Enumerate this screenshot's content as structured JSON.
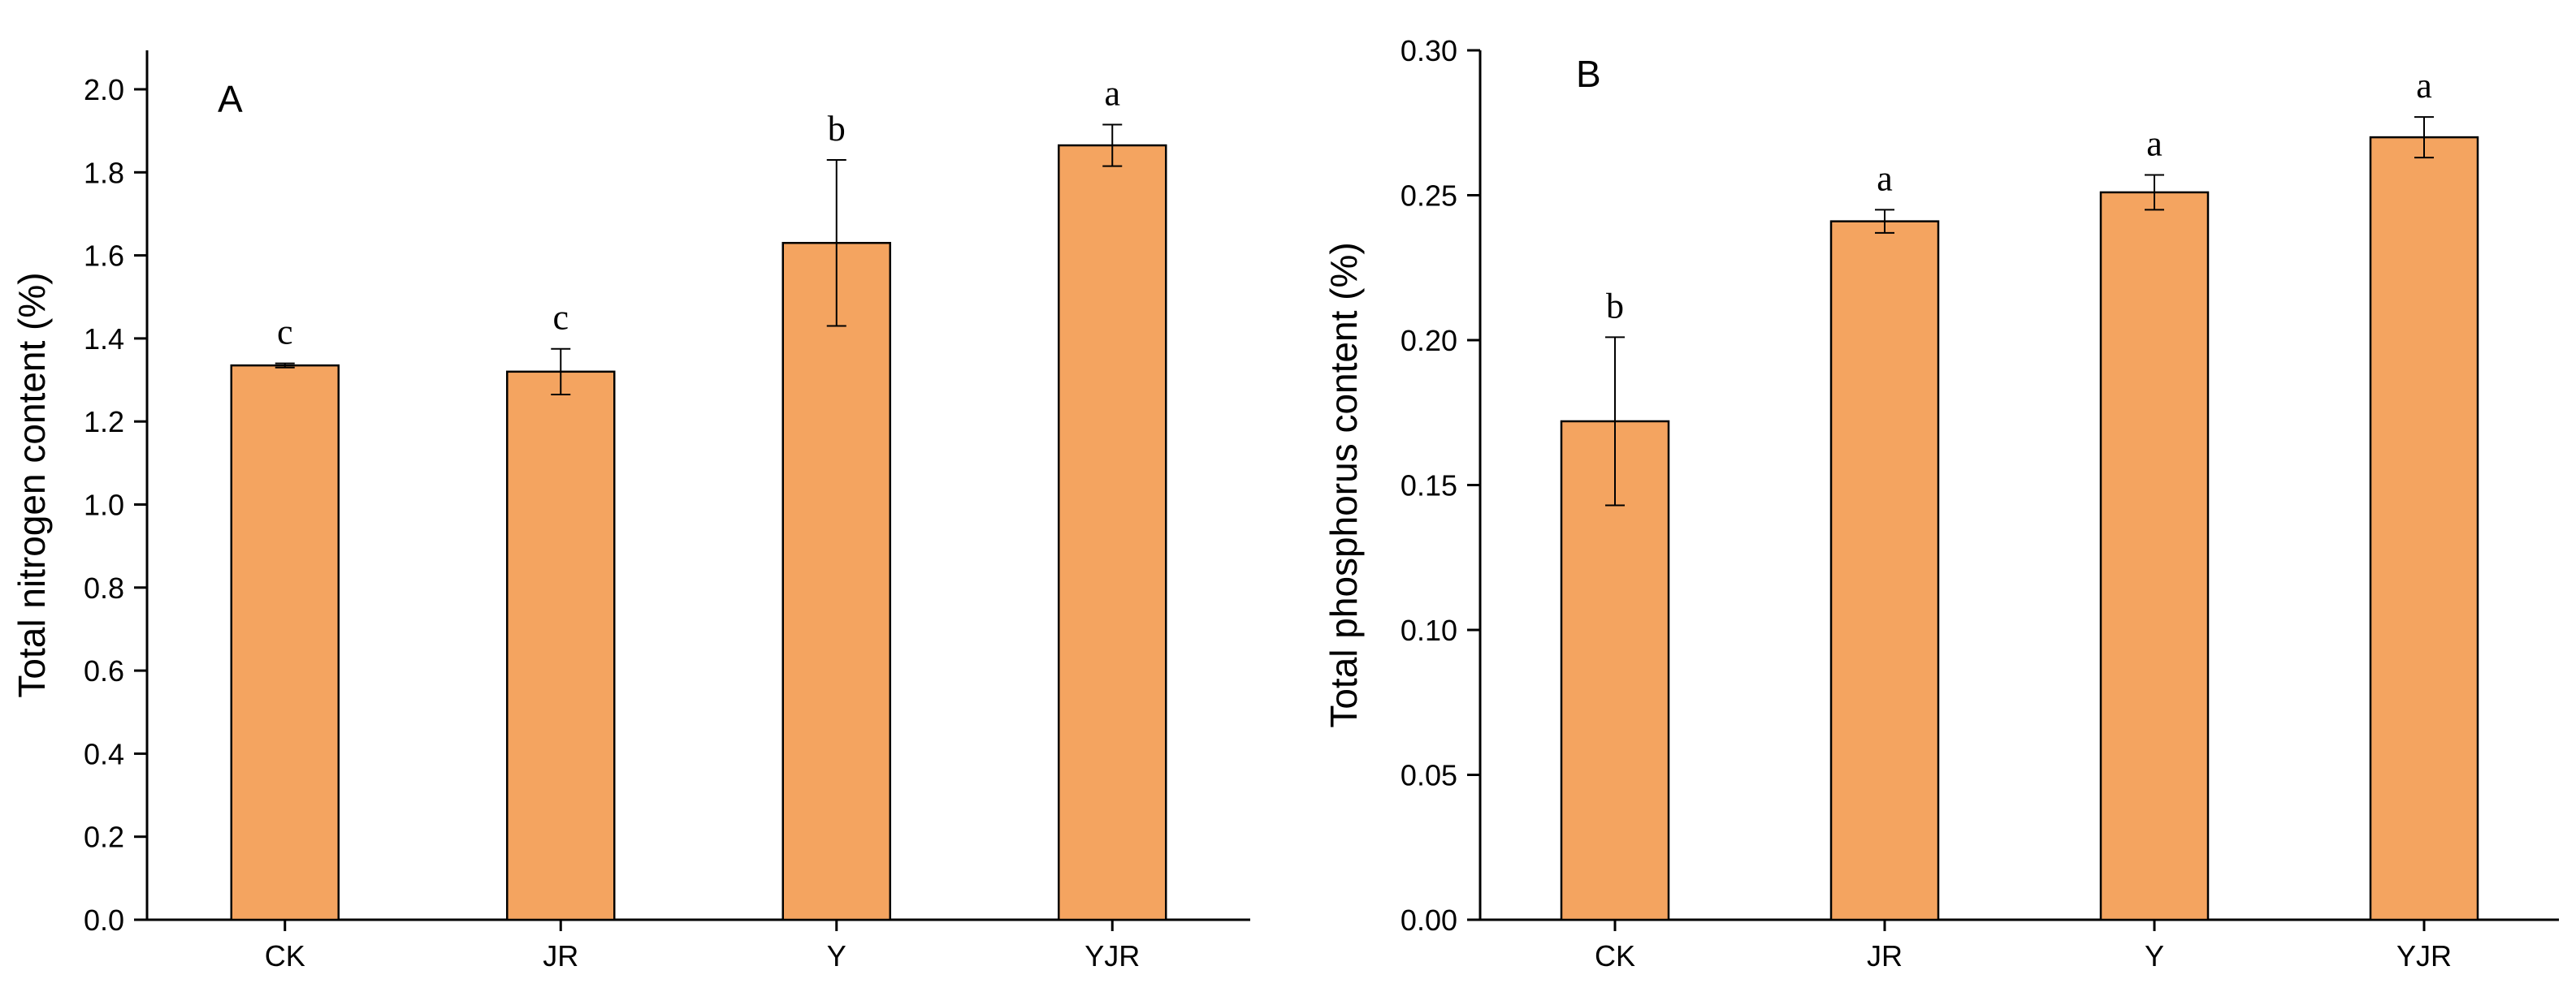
{
  "bar_color": "#F4A460",
  "bar_stroke": "#000000",
  "chart_data": [
    {
      "type": "bar",
      "panel_label": "A",
      "title": "",
      "xlabel": "",
      "ylabel": "Total nitrogen content (%)",
      "ylim": [
        0,
        2.1
      ],
      "yticks": [
        "0.0",
        "0.2",
        "0.4",
        "0.6",
        "0.8",
        "1.0",
        "1.2",
        "1.4",
        "1.6",
        "1.8",
        "2.0"
      ],
      "categories": [
        "CK",
        "JR",
        "Y",
        "YJR"
      ],
      "values": [
        1.335,
        1.32,
        1.63,
        1.865
      ],
      "errors": [
        0.005,
        0.055,
        0.2,
        0.05
      ],
      "significance": [
        "c",
        "c",
        "b",
        "a"
      ],
      "grid": false
    },
    {
      "type": "bar",
      "panel_label": "B",
      "title": "",
      "xlabel": "",
      "ylabel": "Total phosphorus content (%)",
      "ylim": [
        0,
        0.3
      ],
      "yticks": [
        "0.00",
        "0.05",
        "0.10",
        "0.15",
        "0.20",
        "0.25",
        "0.30"
      ],
      "categories": [
        "CK",
        "JR",
        "Y",
        "YJR"
      ],
      "values": [
        0.172,
        0.241,
        0.251,
        0.27
      ],
      "errors": [
        0.029,
        0.004,
        0.006,
        0.007
      ],
      "significance": [
        "b",
        "a",
        "a",
        "a"
      ],
      "grid": false
    }
  ]
}
